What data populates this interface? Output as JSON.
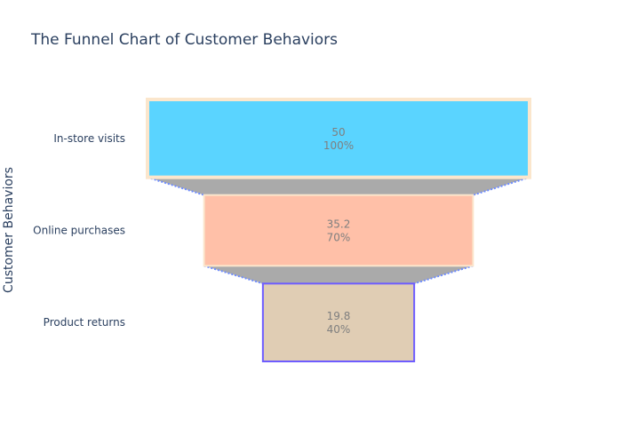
{
  "chart_data": {
    "type": "funnel",
    "title": "The Funnel Chart of Customer Behaviors",
    "ylabel": "Customer Behaviors",
    "categories": [
      "In-store visits",
      "Online purchases",
      "Product returns"
    ],
    "values": [
      50,
      35.2,
      19.8
    ],
    "percent_labels": [
      "100%",
      "70%",
      "40%"
    ],
    "fill_colors": [
      "#5ad4ff",
      "#ffc0a8",
      "#e0cdb4"
    ],
    "border_colors": [
      "#fbe6cc",
      "#fbe6cc",
      "#6e5cff"
    ],
    "connector_color": "#aaaaaa",
    "connector_line_color": "#6e8cff"
  }
}
